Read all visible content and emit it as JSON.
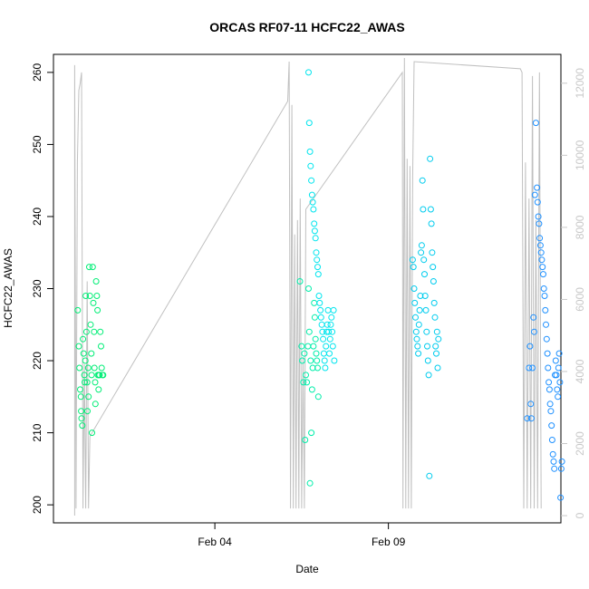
{
  "chart_data": {
    "type": "scatter",
    "title": "ORCAS RF07-11 HCFC22_AWAS",
    "xlabel": "Date",
    "ylabel": "HCFC22_AWAS",
    "x_ticks": [
      {
        "label": "Feb 04",
        "day": 4
      },
      {
        "label": "Feb 09",
        "day": 9
      }
    ],
    "xlim_days": [
      -0.65,
      13.97
    ],
    "ylim": [
      197.5,
      262.5
    ],
    "y_ticks": [
      200,
      210,
      220,
      230,
      240,
      250,
      260
    ],
    "y2lim": [
      -200,
      12800
    ],
    "y2_ticks": [
      0,
      2000,
      4000,
      6000,
      8000,
      10000,
      12000
    ],
    "colors": {
      "rf07": "#00ee76",
      "rf08": "#00eeaa",
      "rf09": "#00e5ee",
      "rf10": "#00ccee",
      "rf11": "#1e90ff",
      "altitude": "#c0c0c0"
    },
    "series": [
      {
        "flight": "rf07",
        "color": "#00ee76",
        "values": [
          [
            0.05,
            227
          ],
          [
            0.08,
            222
          ],
          [
            0.1,
            219
          ],
          [
            0.12,
            216
          ],
          [
            0.14,
            215
          ],
          [
            0.15,
            213
          ],
          [
            0.16,
            212
          ],
          [
            0.18,
            211
          ],
          [
            0.2,
            223
          ],
          [
            0.22,
            221
          ],
          [
            0.24,
            218
          ],
          [
            0.25,
            217
          ],
          [
            0.27,
            220
          ],
          [
            0.28,
            229
          ],
          [
            0.3,
            224
          ],
          [
            0.32,
            217
          ],
          [
            0.33,
            213
          ],
          [
            0.35,
            219
          ],
          [
            0.36,
            215
          ],
          [
            0.38,
            233
          ],
          [
            0.4,
            229
          ],
          [
            0.42,
            225
          ],
          [
            0.44,
            221
          ],
          [
            0.45,
            218
          ],
          [
            0.46,
            210
          ],
          [
            0.48,
            233
          ],
          [
            0.5,
            228
          ],
          [
            0.52,
            224
          ],
          [
            0.53,
            219
          ],
          [
            0.55,
            217
          ],
          [
            0.56,
            214
          ],
          [
            0.58,
            231
          ],
          [
            0.6,
            229
          ],
          [
            0.62,
            227
          ],
          [
            0.63,
            218
          ],
          [
            0.65,
            216
          ],
          [
            0.66,
            218
          ],
          [
            0.68,
            218
          ],
          [
            0.7,
            224
          ],
          [
            0.72,
            222
          ],
          [
            0.74,
            219
          ],
          [
            0.76,
            218
          ],
          [
            0.78,
            218
          ]
        ]
      },
      {
        "flight": "rf08",
        "color": "#00eeaa",
        "values": [
          [
            6.45,
            231
          ],
          [
            6.5,
            222
          ],
          [
            6.52,
            220
          ],
          [
            6.55,
            217
          ],
          [
            6.58,
            221
          ],
          [
            6.6,
            209
          ],
          [
            6.62,
            218
          ],
          [
            6.65,
            217
          ],
          [
            6.68,
            222
          ],
          [
            6.7,
            230
          ],
          [
            6.72,
            224
          ],
          [
            6.74,
            203
          ],
          [
            6.76,
            220
          ],
          [
            6.78,
            210
          ],
          [
            6.8,
            216
          ],
          [
            6.82,
            219
          ],
          [
            6.84,
            222
          ],
          [
            6.86,
            228
          ],
          [
            6.88,
            226
          ],
          [
            6.9,
            223
          ],
          [
            6.92,
            221
          ],
          [
            6.94,
            220
          ],
          [
            6.96,
            219
          ],
          [
            6.98,
            215
          ]
        ]
      },
      {
        "flight": "rf09",
        "color": "#00e5ee",
        "values": [
          [
            6.7,
            260
          ],
          [
            6.72,
            253
          ],
          [
            6.74,
            249
          ],
          [
            6.76,
            247
          ],
          [
            6.78,
            245
          ],
          [
            6.8,
            243
          ],
          [
            6.82,
            242
          ],
          [
            6.84,
            241
          ],
          [
            6.86,
            239
          ],
          [
            6.88,
            238
          ],
          [
            6.9,
            237
          ],
          [
            6.92,
            235
          ],
          [
            6.94,
            234
          ],
          [
            6.96,
            233
          ],
          [
            6.98,
            232
          ],
          [
            7.0,
            229
          ],
          [
            7.02,
            228
          ],
          [
            7.04,
            227
          ],
          [
            7.06,
            226
          ],
          [
            7.08,
            225
          ],
          [
            7.1,
            224
          ],
          [
            7.12,
            223
          ],
          [
            7.14,
            221
          ],
          [
            7.16,
            220
          ],
          [
            7.18,
            219
          ],
          [
            7.2,
            222
          ],
          [
            7.22,
            224
          ],
          [
            7.24,
            225
          ],
          [
            7.26,
            227
          ],
          [
            7.28,
            224
          ],
          [
            7.3,
            221
          ],
          [
            7.32,
            223
          ],
          [
            7.34,
            225
          ],
          [
            7.36,
            226
          ],
          [
            7.38,
            224
          ],
          [
            7.4,
            222
          ],
          [
            7.42,
            227
          ],
          [
            7.44,
            220
          ]
        ]
      },
      {
        "flight": "rf10",
        "color": "#00ccee",
        "values": [
          [
            9.7,
            234
          ],
          [
            9.72,
            233
          ],
          [
            9.74,
            230
          ],
          [
            9.76,
            228
          ],
          [
            9.78,
            226
          ],
          [
            9.8,
            224
          ],
          [
            9.82,
            223
          ],
          [
            9.84,
            222
          ],
          [
            9.86,
            221
          ],
          [
            9.88,
            225
          ],
          [
            9.9,
            227
          ],
          [
            9.92,
            229
          ],
          [
            9.94,
            235
          ],
          [
            9.96,
            236
          ],
          [
            9.98,
            245
          ],
          [
            10.0,
            241
          ],
          [
            10.02,
            234
          ],
          [
            10.04,
            232
          ],
          [
            10.06,
            229
          ],
          [
            10.08,
            227
          ],
          [
            10.1,
            224
          ],
          [
            10.12,
            222
          ],
          [
            10.14,
            220
          ],
          [
            10.16,
            218
          ],
          [
            10.18,
            204
          ],
          [
            10.2,
            248
          ],
          [
            10.22,
            241
          ],
          [
            10.24,
            239
          ],
          [
            10.26,
            235
          ],
          [
            10.28,
            233
          ],
          [
            10.3,
            231
          ],
          [
            10.32,
            228
          ],
          [
            10.34,
            226
          ],
          [
            10.36,
            222
          ],
          [
            10.38,
            221
          ],
          [
            10.4,
            224
          ],
          [
            10.42,
            219
          ],
          [
            10.44,
            223
          ]
        ]
      },
      {
        "flight": "rf11",
        "color": "#1e90ff",
        "values": [
          [
            13.0,
            212
          ],
          [
            13.05,
            219
          ],
          [
            13.08,
            222
          ],
          [
            13.1,
            214
          ],
          [
            13.12,
            212
          ],
          [
            13.15,
            219
          ],
          [
            13.18,
            226
          ],
          [
            13.2,
            224
          ],
          [
            13.22,
            243
          ],
          [
            13.25,
            253
          ],
          [
            13.28,
            244
          ],
          [
            13.3,
            242
          ],
          [
            13.32,
            240
          ],
          [
            13.34,
            239
          ],
          [
            13.36,
            237
          ],
          [
            13.38,
            236
          ],
          [
            13.4,
            235
          ],
          [
            13.42,
            234
          ],
          [
            13.44,
            233
          ],
          [
            13.46,
            232
          ],
          [
            13.48,
            230
          ],
          [
            13.5,
            229
          ],
          [
            13.52,
            227
          ],
          [
            13.54,
            225
          ],
          [
            13.56,
            223
          ],
          [
            13.58,
            221
          ],
          [
            13.6,
            219
          ],
          [
            13.62,
            217
          ],
          [
            13.64,
            216
          ],
          [
            13.66,
            214
          ],
          [
            13.68,
            213
          ],
          [
            13.7,
            211
          ],
          [
            13.72,
            209
          ],
          [
            13.74,
            207
          ],
          [
            13.76,
            206
          ],
          [
            13.78,
            205
          ],
          [
            13.8,
            218
          ],
          [
            13.82,
            220
          ],
          [
            13.84,
            218
          ],
          [
            13.86,
            216
          ],
          [
            13.88,
            215
          ],
          [
            13.9,
            219
          ],
          [
            13.92,
            221
          ],
          [
            13.94,
            217
          ],
          [
            13.96,
            201
          ],
          [
            13.98,
            205
          ],
          [
            14.0,
            206
          ]
        ]
      }
    ],
    "altitude_trace": [
      [
        -0.04,
        0
      ],
      [
        -0.04,
        12500
      ],
      [
        0.0,
        200
      ],
      [
        0.04,
        9800
      ],
      [
        0.08,
        11800
      ],
      [
        0.12,
        12000
      ],
      [
        0.16,
        12300
      ],
      [
        0.2,
        200
      ],
      [
        0.24,
        4200
      ],
      [
        0.28,
        200
      ],
      [
        0.32,
        6500
      ],
      [
        0.36,
        200
      ],
      [
        0.4,
        2200
      ],
      [
        6.1,
        11500
      ],
      [
        6.14,
        12600
      ],
      [
        6.18,
        200
      ],
      [
        6.22,
        11400
      ],
      [
        6.26,
        200
      ],
      [
        6.3,
        7800
      ],
      [
        6.34,
        200
      ],
      [
        6.38,
        8200
      ],
      [
        6.42,
        200
      ],
      [
        6.46,
        8800
      ],
      [
        6.5,
        200
      ],
      [
        6.54,
        4400
      ],
      [
        6.58,
        200
      ],
      [
        6.62,
        8500
      ],
      [
        9.4,
        12300
      ],
      [
        9.42,
        200
      ],
      [
        9.46,
        12700
      ],
      [
        9.5,
        200
      ],
      [
        9.54,
        9900
      ],
      [
        9.58,
        200
      ],
      [
        9.62,
        9700
      ],
      [
        9.66,
        200
      ],
      [
        9.7,
        9400
      ],
      [
        9.74,
        12600
      ],
      [
        12.8,
        12400
      ],
      [
        12.85,
        12300
      ],
      [
        12.9,
        200
      ],
      [
        12.95,
        9800
      ],
      [
        13.0,
        200
      ],
      [
        13.05,
        8800
      ],
      [
        13.1,
        200
      ],
      [
        13.15,
        12200
      ],
      [
        13.2,
        200
      ],
      [
        13.25,
        8200
      ],
      [
        13.3,
        200
      ],
      [
        13.35,
        12300
      ],
      [
        13.4,
        200
      ]
    ]
  }
}
